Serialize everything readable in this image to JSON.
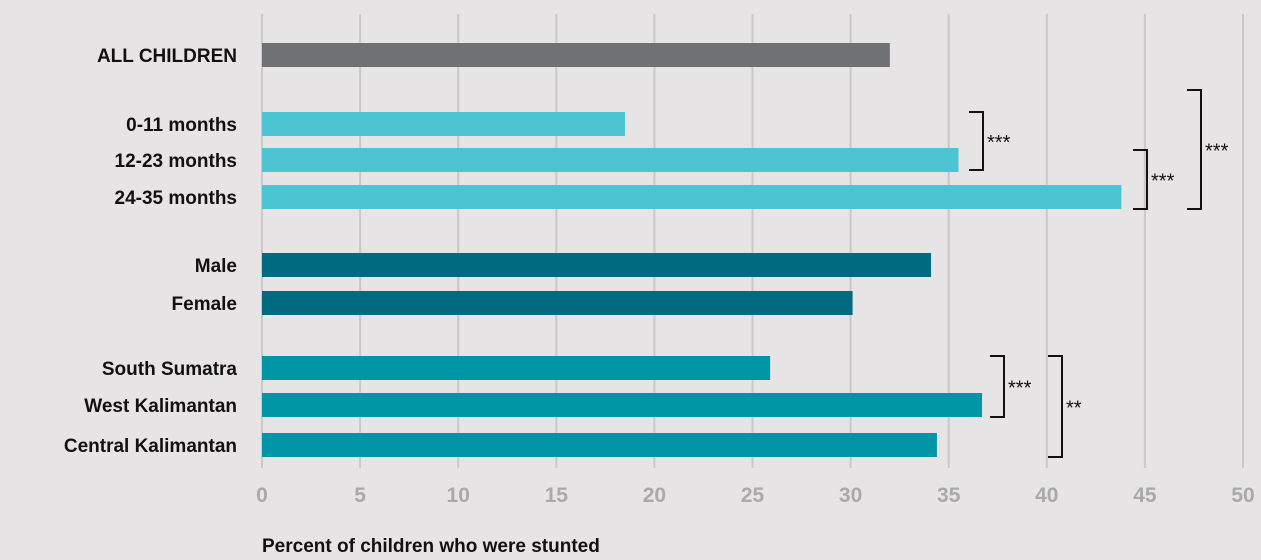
{
  "chart_data": {
    "type": "bar",
    "orientation": "horizontal",
    "xlabel": "Percent of children who were stunted",
    "xlim": [
      0,
      50
    ],
    "xticks": [
      0,
      5,
      10,
      15,
      20,
      25,
      30,
      35,
      40,
      45,
      50
    ],
    "grid": true,
    "colors": {
      "all": "#707173",
      "age": "#4dc4d1",
      "sex": "#006a80",
      "province": "#0096a6",
      "grid": "#c9c9c9",
      "background": "#e6e4e4"
    },
    "bars": [
      {
        "category": "ALL CHILDREN",
        "value": 32.0,
        "group": "all"
      },
      {
        "category": "0-11 months",
        "value": 18.5,
        "group": "age"
      },
      {
        "category": "12-23 months",
        "value": 35.5,
        "group": "age"
      },
      {
        "category": "24-35 months",
        "value": 43.8,
        "group": "age"
      },
      {
        "category": "Male",
        "value": 34.1,
        "group": "sex"
      },
      {
        "category": "Female",
        "value": 30.1,
        "group": "sex"
      },
      {
        "category": "South Sumatra",
        "value": 25.9,
        "group": "province"
      },
      {
        "category": "West Kalimantan",
        "value": 36.7,
        "group": "province"
      },
      {
        "category": "Central Kalimantan",
        "value": 34.4,
        "group": "province"
      }
    ],
    "significance": [
      {
        "from": "0-11 months",
        "to": "12-23 months",
        "label": "***"
      },
      {
        "from": "12-23 months",
        "to": "24-35 months",
        "label": "***"
      },
      {
        "from": "0-11 months",
        "to": "24-35 months",
        "label": "***"
      },
      {
        "from": "South Sumatra",
        "to": "West Kalimantan",
        "label": "***"
      },
      {
        "from": "South Sumatra",
        "to": "Central Kalimantan",
        "label": "**"
      }
    ]
  }
}
